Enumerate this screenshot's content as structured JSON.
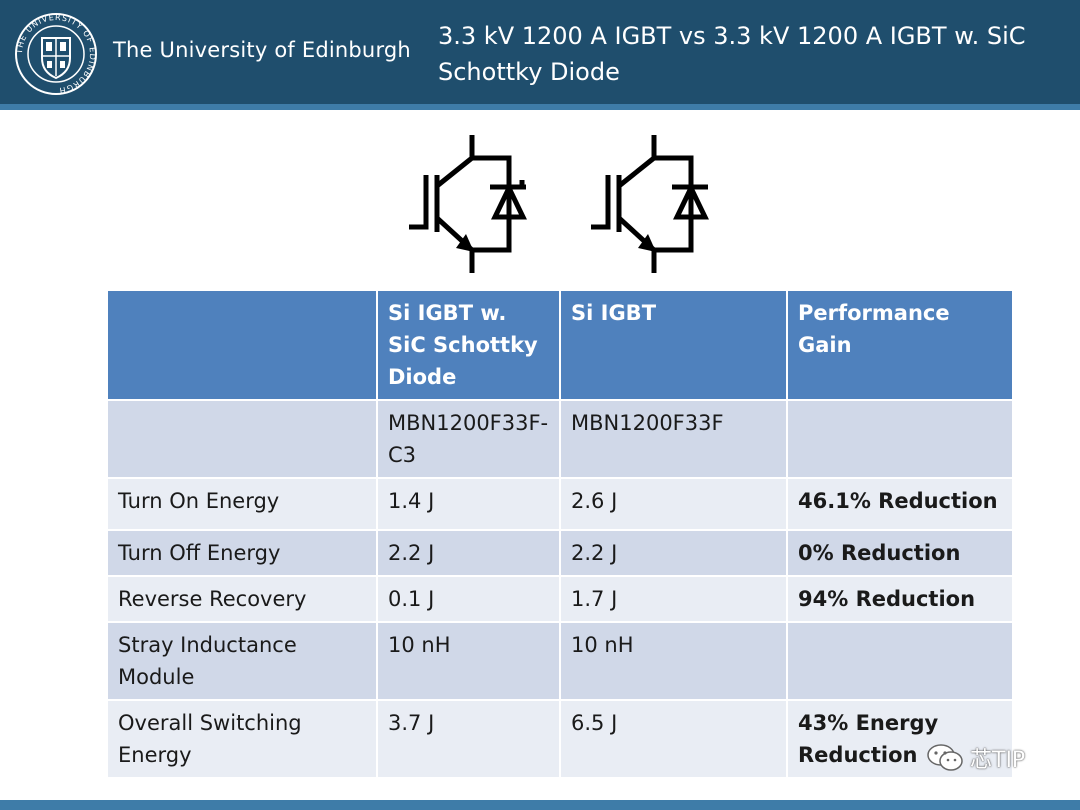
{
  "header": {
    "crest_icon": "university-crest-icon",
    "crest_text": "THE UNIVERSITY OF EDINBURGH",
    "university_name": "The University of Edinburgh",
    "title": "3.3 kV 1200 A IGBT vs 3.3 kV 1200 A IGBT w. SiC Schottky Diode"
  },
  "symbols": [
    "igbt-with-sic-diode-symbol-icon",
    "igbt-symbol-icon"
  ],
  "table": {
    "headers": [
      "",
      "Si IGBT w. SiC Schottky Diode",
      "Si IGBT",
      "Performance Gain"
    ],
    "rows": [
      [
        "",
        "MBN1200F33F-C3",
        "MBN1200F33F",
        ""
      ],
      [
        "Turn On Energy",
        "1.4 J",
        "2.6 J",
        "46.1% Reduction"
      ],
      [
        "Turn Off Energy",
        "2.2 J",
        "2.2 J",
        "0% Reduction"
      ],
      [
        "Reverse Recovery",
        "0.1 J",
        "1.7 J",
        "94% Reduction"
      ],
      [
        "Stray Inductance Module",
        "10 nH",
        "10 nH",
        ""
      ],
      [
        "Overall Switching Energy",
        "3.7 J",
        "6.5 J",
        "43% Energy Reduction"
      ]
    ]
  },
  "watermark": {
    "icon": "wechat-icon",
    "text": "芯TIP"
  },
  "colors": {
    "header_bg": "#1f4e6d",
    "accent": "#3e7ca8",
    "table_header": "#4f81bd",
    "row_dark": "#d0d8e8",
    "row_light": "#e9edf4"
  }
}
